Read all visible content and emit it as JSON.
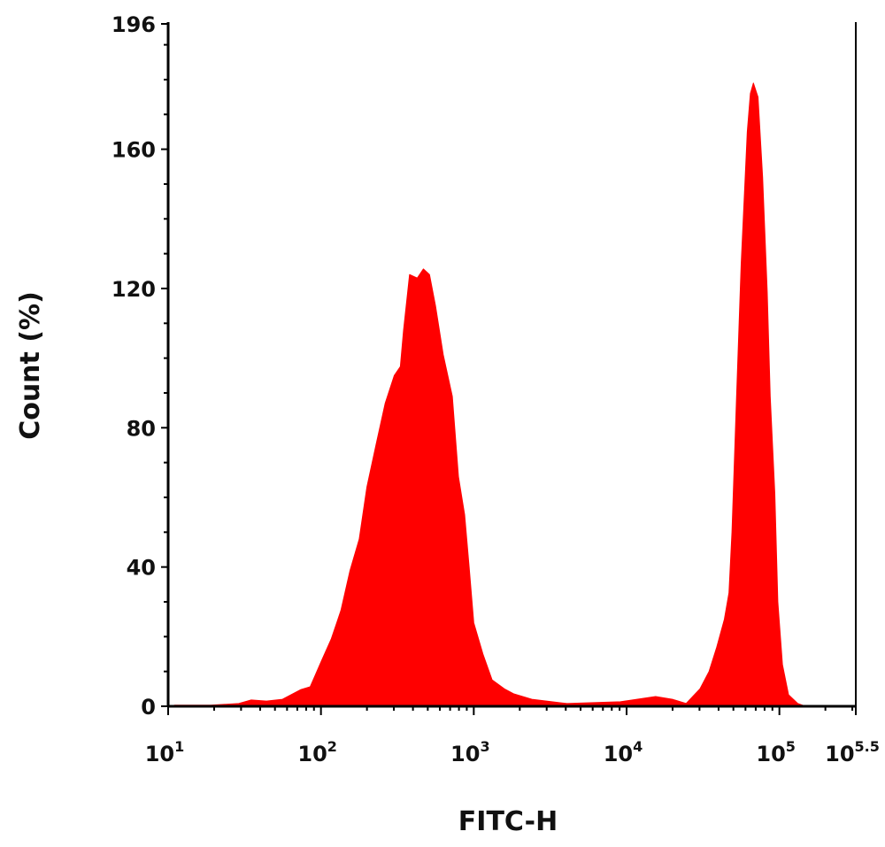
{
  "chart_data": {
    "type": "area",
    "xlabel": "FITC-H",
    "ylabel": "Count (%)",
    "xscale": "log",
    "xlim": [
      10,
      316228
    ],
    "ylim": [
      0,
      196
    ],
    "grid": false,
    "fill_color": "#ff0000",
    "y_ticks": [
      0,
      40,
      80,
      120,
      160,
      196
    ],
    "y_tick_labels": [
      "0",
      "40",
      "80",
      "120",
      "160",
      "196"
    ],
    "x_ticks": [
      {
        "base": "10",
        "exp": "1",
        "value": 10
      },
      {
        "base": "10",
        "exp": "2",
        "value": 100
      },
      {
        "base": "10",
        "exp": "3",
        "value": 1000
      },
      {
        "base": "10",
        "exp": "4",
        "value": 10000
      },
      {
        "base": "10",
        "exp": "5",
        "value": 100000
      },
      {
        "base": "10",
        "exp": "5.5",
        "value": 316228
      }
    ],
    "x": [
      11,
      19,
      29,
      35,
      44,
      56,
      74,
      85,
      100,
      117,
      135,
      155,
      178,
      200,
      229,
      263,
      302,
      331,
      347,
      380,
      427,
      468,
      513,
      562,
      631,
      724,
      794,
      871,
      933,
      1000,
      1148,
      1318,
      1585,
      1820,
      2399,
      4074,
      9120,
      15488,
      19953,
      24547,
      30200,
      34674,
      38905,
      43652,
      46774,
      48978,
      52481,
      56234,
      61660,
      64565,
      67608,
      72444,
      77625,
      83176,
      87096,
      93325,
      97724,
      104713,
      114815,
      131826,
      147911
    ],
    "y": [
      0.3,
      0.3,
      0.8,
      1.8,
      1.5,
      2,
      4.8,
      5.6,
      12.7,
      19.4,
      27.5,
      39,
      48,
      63,
      75,
      87,
      95,
      97.6,
      108,
      124,
      123,
      125.6,
      124,
      115,
      101,
      89,
      66,
      55,
      40,
      24,
      15,
      7.6,
      5,
      3.6,
      2,
      0.8,
      1.3,
      2.8,
      2,
      0.8,
      5,
      10,
      17,
      25,
      32.6,
      50,
      89,
      127,
      165,
      176,
      179,
      175,
      152,
      119,
      89,
      61,
      30,
      12,
      3.3,
      0.8,
      0
    ]
  }
}
